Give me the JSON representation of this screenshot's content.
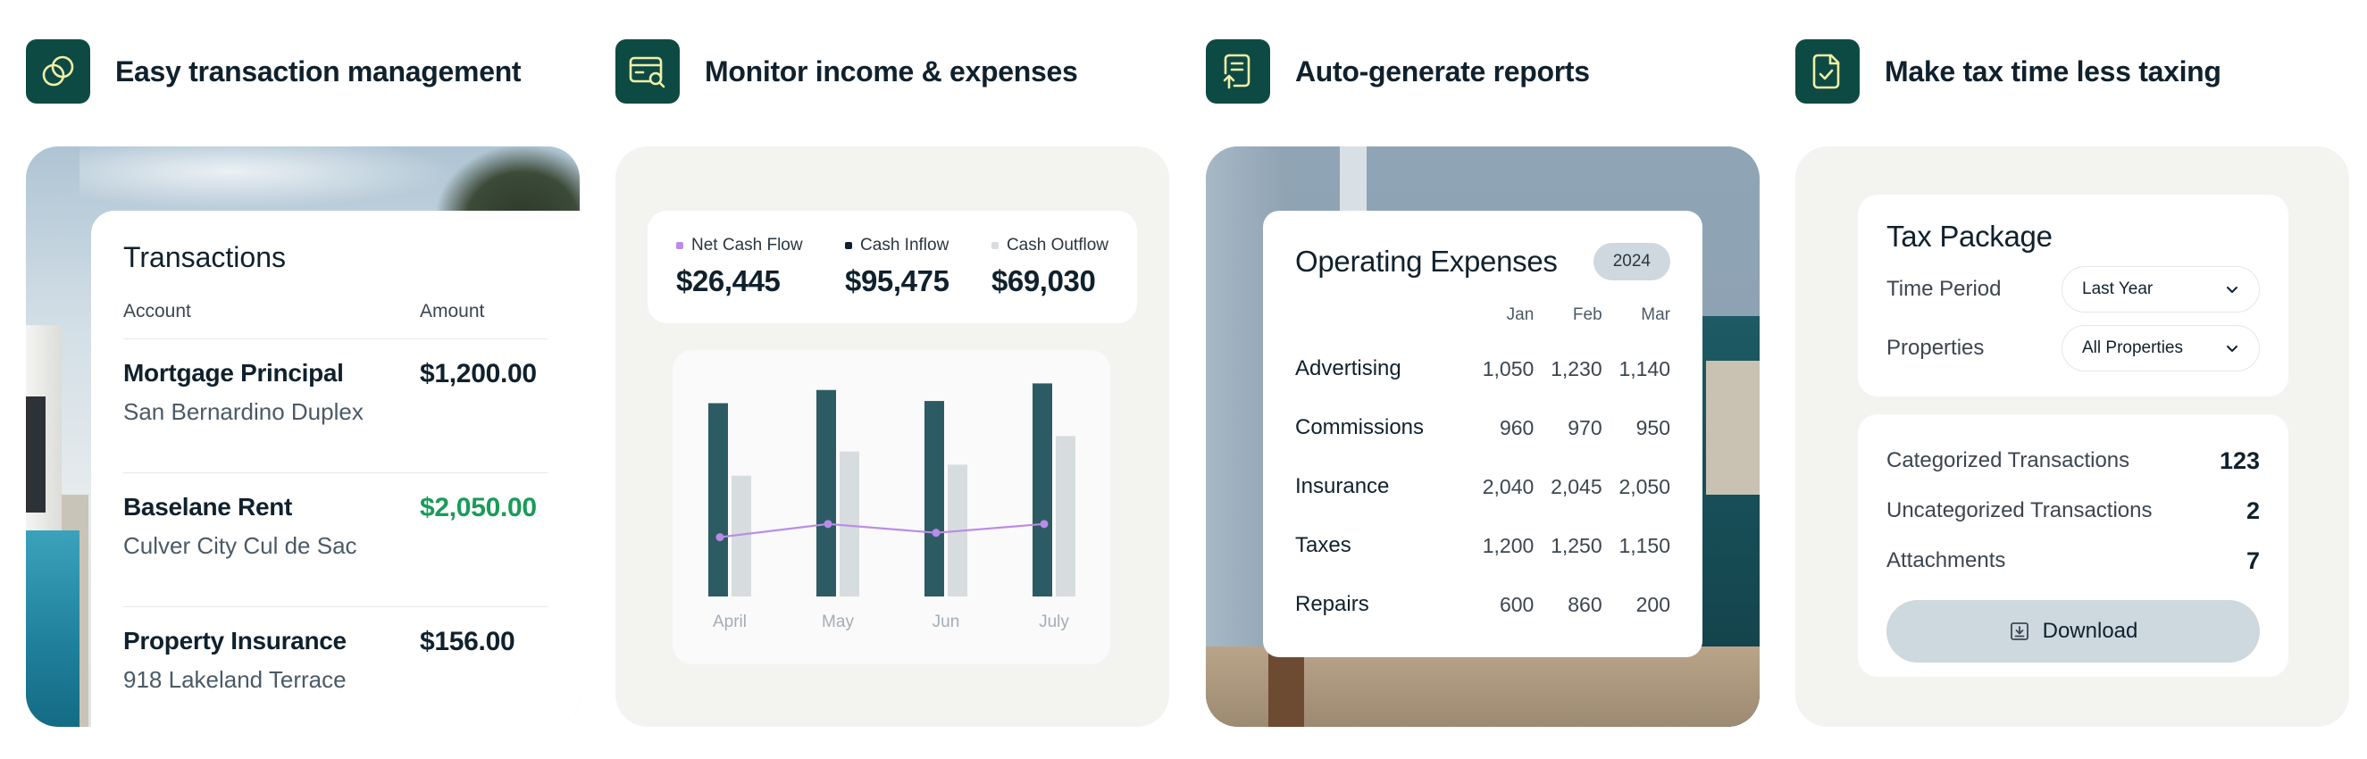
{
  "colors": {
    "brand_dark_green": "#0e4a44",
    "icon_line": "#f1f0a6",
    "positive_amount": "#1a9b5a",
    "chart_bar_primary": "#2d5b63",
    "chart_bar_secondary": "#d7dcdf",
    "chart_line": "#b98ce8"
  },
  "features": [
    {
      "icon": "circles-icon",
      "title": "Easy transaction management"
    },
    {
      "icon": "card-search-icon",
      "title": "Monitor income & expenses"
    },
    {
      "icon": "report-upload-icon",
      "title": "Auto-generate reports"
    },
    {
      "icon": "document-check-icon",
      "title": "Make tax time less taxing"
    }
  ],
  "transactions": {
    "title": "Transactions",
    "headers": {
      "account": "Account",
      "amount": "Amount"
    },
    "rows": [
      {
        "name": "Mortgage Principal",
        "property": "San Bernardino Duplex",
        "amount": "$1,200.00",
        "positive": false
      },
      {
        "name": "Baselane Rent",
        "property": "Culver City Cul de Sac",
        "amount": "$2,050.00",
        "positive": true
      },
      {
        "name": "Property Insurance",
        "property": "918 Lakeland Terrace",
        "amount": "$156.00",
        "positive": false
      }
    ]
  },
  "cashflow": {
    "kpis": [
      {
        "label": "Net Cash Flow",
        "value": "$26,445",
        "color": "#b98ce8"
      },
      {
        "label": "Cash Inflow",
        "value": "$95,475",
        "color": "#10212d"
      },
      {
        "label": "Cash Outflow",
        "value": "$69,030",
        "color": "#d7dcdf"
      }
    ]
  },
  "chart_data": {
    "type": "bar",
    "categories": [
      "April",
      "May",
      "Jun",
      "July"
    ],
    "series": [
      {
        "values": [
          88,
          94,
          89,
          97
        ]
      },
      {
        "values": [
          55,
          66,
          60,
          73
        ]
      },
      {
        "values": [
          27,
          33,
          29,
          33
        ]
      }
    ],
    "ylim": [
      0,
      100
    ],
    "grid": false,
    "legend": "none"
  },
  "opex": {
    "title": "Operating Expenses",
    "year": "2024",
    "months": [
      "Jan",
      "Feb",
      "Mar"
    ],
    "rows": [
      {
        "label": "Advertising",
        "values": [
          "1,050",
          "1,230",
          "1,140"
        ]
      },
      {
        "label": "Commissions",
        "values": [
          "960",
          "970",
          "950"
        ]
      },
      {
        "label": "Insurance",
        "values": [
          "2,040",
          "2,045",
          "2,050"
        ]
      },
      {
        "label": "Taxes",
        "values": [
          "1,200",
          "1,250",
          "1,150"
        ]
      },
      {
        "label": "Repairs",
        "values": [
          "600",
          "860",
          "200"
        ]
      }
    ]
  },
  "tax": {
    "title": "Tax Package",
    "fields": [
      {
        "label": "Time Period",
        "value": "Last Year"
      },
      {
        "label": "Properties",
        "value": "All Properties"
      }
    ],
    "stats": [
      {
        "label": "Categorized Transactions",
        "value": "123"
      },
      {
        "label": "Uncategorized Transactions",
        "value": "2"
      },
      {
        "label": "Attachments",
        "value": "7"
      }
    ],
    "download_label": "Download"
  }
}
